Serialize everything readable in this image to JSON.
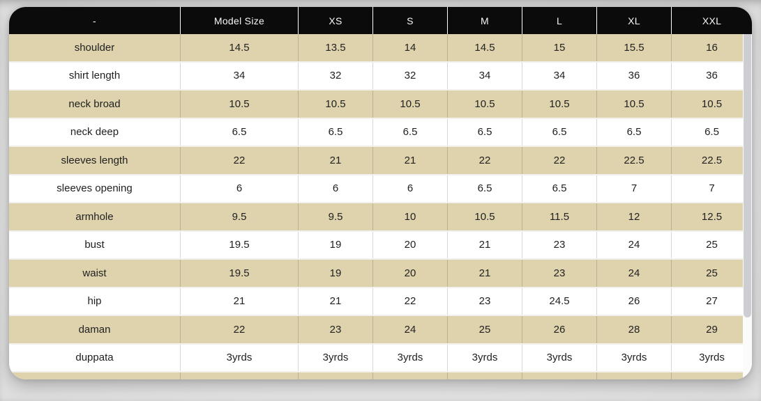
{
  "table": {
    "columns": [
      "-",
      "Model Size",
      "XS",
      "S",
      "M",
      "L",
      "XL",
      "XXL"
    ],
    "rows": [
      {
        "label": "shoulder",
        "values": [
          "14.5",
          "13.5",
          "14",
          "14.5",
          "15",
          "15.5",
          "16"
        ]
      },
      {
        "label": "shirt length",
        "values": [
          "34",
          "32",
          "32",
          "34",
          "34",
          "36",
          "36"
        ]
      },
      {
        "label": "neck broad",
        "values": [
          "10.5",
          "10.5",
          "10.5",
          "10.5",
          "10.5",
          "10.5",
          "10.5"
        ]
      },
      {
        "label": "neck deep",
        "values": [
          "6.5",
          "6.5",
          "6.5",
          "6.5",
          "6.5",
          "6.5",
          "6.5"
        ]
      },
      {
        "label": "sleeves length",
        "values": [
          "22",
          "21",
          "21",
          "22",
          "22",
          "22.5",
          "22.5"
        ]
      },
      {
        "label": "sleeves opening",
        "values": [
          "6",
          "6",
          "6",
          "6.5",
          "6.5",
          "7",
          "7"
        ]
      },
      {
        "label": "armhole",
        "values": [
          "9.5",
          "9.5",
          "10",
          "10.5",
          "11.5",
          "12",
          "12.5"
        ]
      },
      {
        "label": "bust",
        "values": [
          "19.5",
          "19",
          "20",
          "21",
          "23",
          "24",
          "25"
        ]
      },
      {
        "label": "waist",
        "values": [
          "19.5",
          "19",
          "20",
          "21",
          "23",
          "24",
          "25"
        ]
      },
      {
        "label": "hip",
        "values": [
          "21",
          "21",
          "22",
          "23",
          "24.5",
          "26",
          "27"
        ]
      },
      {
        "label": "daman",
        "values": [
          "22",
          "23",
          "24",
          "25",
          "26",
          "28",
          "29"
        ]
      },
      {
        "label": "duppata",
        "values": [
          "3yrds",
          "3yrds",
          "3yrds",
          "3yrds",
          "3yrds",
          "3yrds",
          "3yrds"
        ]
      }
    ]
  },
  "colors": {
    "header_bg": "#0b0b0b",
    "header_text": "#f7f7f7",
    "row_alt": "#ded3ad",
    "row_base": "#ffffff",
    "body_text": "#212121",
    "page_bg": "#e7e7e7",
    "scrollbar_thumb": "#cdced2"
  }
}
